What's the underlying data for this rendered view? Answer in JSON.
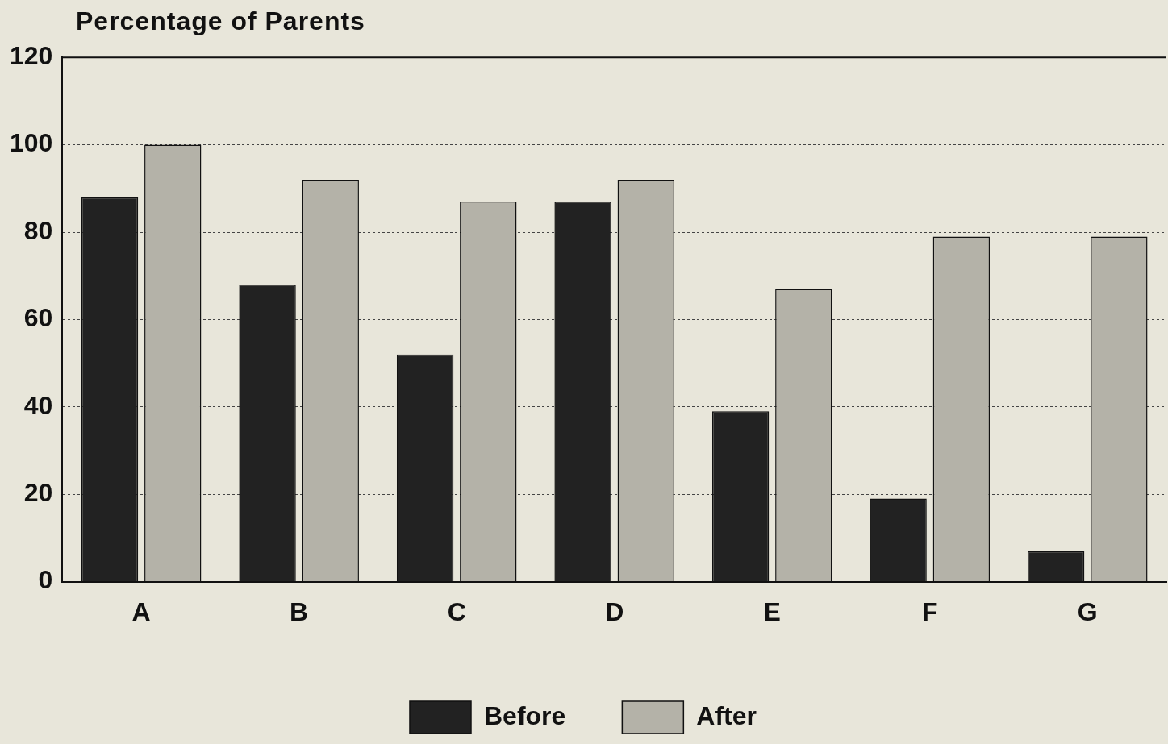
{
  "chart_data": {
    "type": "bar",
    "ylabel": "Percentage of Parents",
    "categories": [
      "A",
      "B",
      "C",
      "D",
      "E",
      "F",
      "G"
    ],
    "series": [
      {
        "name": "Before",
        "color": "#222222",
        "values": [
          88,
          68,
          52,
          87,
          39,
          19,
          7
        ]
      },
      {
        "name": "After",
        "color": "#b4b2a8",
        "values": [
          100,
          92,
          87,
          92,
          67,
          79,
          79
        ]
      }
    ],
    "ylim": [
      0,
      120
    ],
    "yticks": [
      0,
      20,
      40,
      60,
      80,
      100,
      120
    ],
    "grid": "y",
    "legend": "bottom"
  }
}
